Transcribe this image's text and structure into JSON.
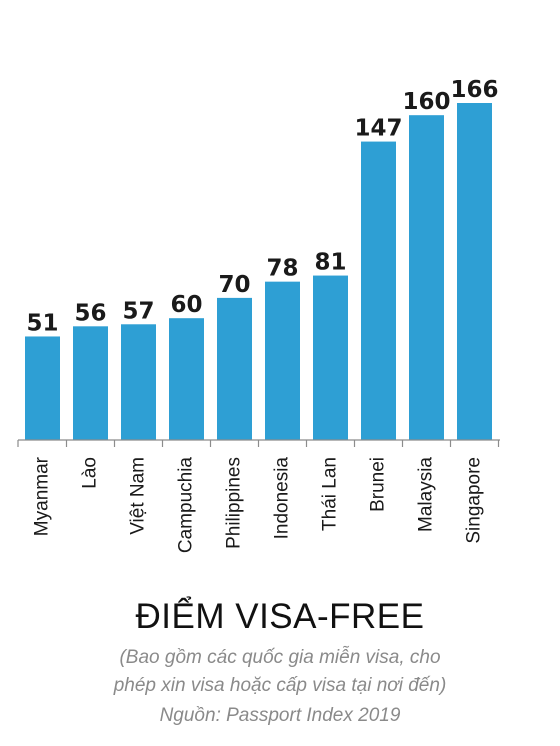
{
  "chart_data": {
    "type": "bar",
    "categories": [
      "Myanmar",
      "Lào",
      "Việt Nam",
      "Campuchia",
      "Philippines",
      "Indonesia",
      "Thái Lan",
      "Brunei",
      "Malaysia",
      "Singapore"
    ],
    "values": [
      51,
      56,
      57,
      60,
      70,
      78,
      81,
      147,
      160,
      166
    ],
    "title": "ĐIỂM VISA-FREE",
    "subtitle_line1": "(Bao gồm các quốc gia miễn visa, cho",
    "subtitle_line2": "phép xin visa hoặc cấp visa tại nơi đến)",
    "source": "Nguồn: Passport Index 2019",
    "xlabel": "",
    "ylabel": "",
    "ylim": [
      0,
      166
    ],
    "grid": false,
    "legend": "none",
    "bar_color": "#2e9fd4"
  }
}
